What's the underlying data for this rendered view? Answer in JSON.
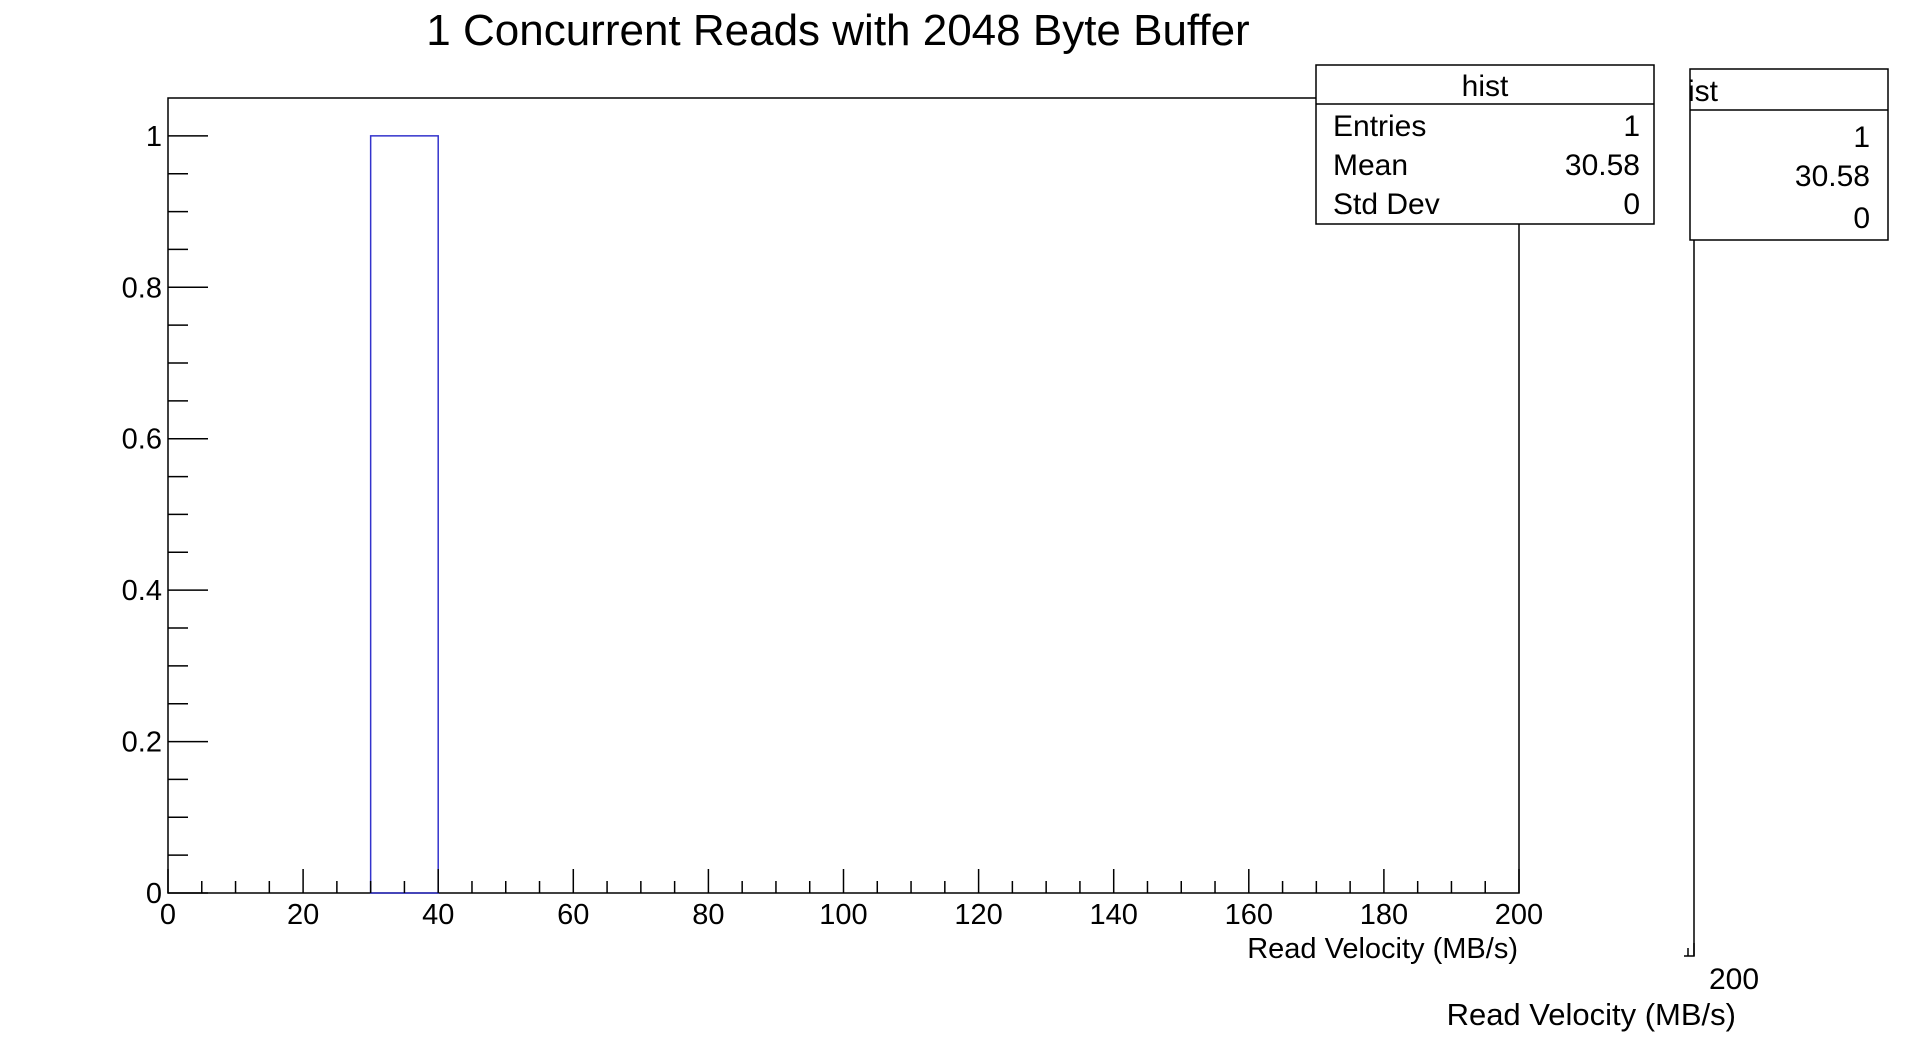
{
  "chart_data": {
    "type": "bar",
    "title": "1 Concurrent Reads with 2048 Byte Buffer",
    "xlabel": "Read Velocity (MB/s)",
    "ylabel": "",
    "xlim": [
      0,
      200
    ],
    "ylim": [
      0,
      1.05
    ],
    "x_ticks": [
      "0",
      "20",
      "40",
      "60",
      "80",
      "100",
      "120",
      "140",
      "160",
      "180",
      "200"
    ],
    "y_ticks": [
      "0",
      "0.2",
      "0.4",
      "0.6",
      "0.8",
      "1"
    ],
    "bins": [
      {
        "low": 30,
        "high": 40,
        "count": 1
      }
    ],
    "bar_color": "#3333cc",
    "grid": false,
    "stats_box": {
      "title": "hist",
      "rows": [
        {
          "label": "Entries",
          "value": "1"
        },
        {
          "label": "Mean",
          "value": "30.58"
        },
        {
          "label": "Std Dev",
          "value": "0"
        }
      ]
    }
  },
  "ghost": {
    "stats_title": "ist",
    "values": [
      "1",
      "30.58",
      "0"
    ],
    "tick_label": "200",
    "xlabel": "Read Velocity (MB/s)"
  }
}
